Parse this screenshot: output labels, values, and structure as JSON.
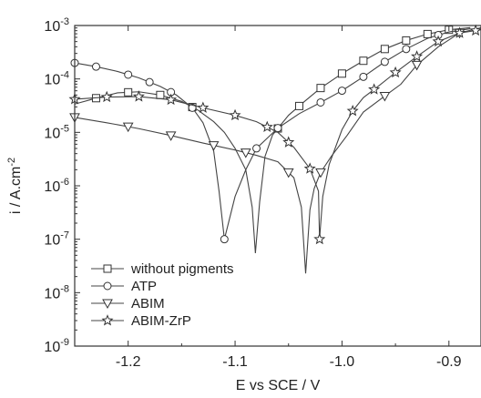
{
  "chart_data": {
    "type": "line",
    "xlabel": "E vs SCE / V",
    "ylabel_main": "i / A.cm",
    "ylabel_sup": "-2",
    "xlim": [
      -1.25,
      -0.87
    ],
    "ylim_log10": [
      -9,
      -3
    ],
    "y_scale": "log",
    "x_ticks": [
      -1.2,
      -1.1,
      -1.0,
      -0.9
    ],
    "x_tick_labels": [
      "-1.2",
      "-1.1",
      "-1.0",
      "-0.9"
    ],
    "y_ticks": [
      {
        "base": "10",
        "exp": "-9",
        "value": -9
      },
      {
        "base": "10",
        "exp": "-8",
        "value": -8
      },
      {
        "base": "10",
        "exp": "-7",
        "value": -7
      },
      {
        "base": "10",
        "exp": "-6",
        "value": -6
      },
      {
        "base": "10",
        "exp": "-5",
        "value": -5
      },
      {
        "base": "10",
        "exp": "-4",
        "value": -4
      },
      {
        "base": "10",
        "exp": "-3",
        "value": -3
      }
    ],
    "legend_position": "bottom-left",
    "series": [
      {
        "name": "without pigments",
        "marker": "square",
        "points": [
          [
            -1.25,
            -4.47
          ],
          [
            -1.23,
            -4.36
          ],
          [
            -1.21,
            -4.26
          ],
          [
            -1.19,
            -4.24
          ],
          [
            -1.17,
            -4.3
          ],
          [
            -1.15,
            -4.42
          ],
          [
            -1.135,
            -4.58
          ],
          [
            -1.12,
            -4.8
          ],
          [
            -1.11,
            -5.0
          ],
          [
            -1.1,
            -5.3
          ],
          [
            -1.09,
            -5.7
          ],
          [
            -1.084,
            -6.4
          ],
          [
            -1.081,
            -7.26
          ],
          [
            -1.077,
            -6.3
          ],
          [
            -1.072,
            -5.45
          ],
          [
            -1.065,
            -5.05
          ],
          [
            -1.05,
            -4.68
          ],
          [
            -1.035,
            -4.42
          ],
          [
            -1.02,
            -4.17
          ],
          [
            -1.0,
            -3.9
          ],
          [
            -0.98,
            -3.66
          ],
          [
            -0.96,
            -3.44
          ],
          [
            -0.94,
            -3.28
          ],
          [
            -0.92,
            -3.16
          ],
          [
            -0.9,
            -3.08
          ],
          [
            -0.88,
            -3.04
          ]
        ],
        "marker_x": [
          -1.23,
          -1.2,
          -1.17,
          -1.14,
          -1.06,
          -1.04,
          -1.02,
          -1.0,
          -0.98,
          -0.96,
          -0.94,
          -0.92,
          -0.9
        ]
      },
      {
        "name": "ATP",
        "marker": "circle",
        "points": [
          [
            -1.25,
            -3.7
          ],
          [
            -1.23,
            -3.77
          ],
          [
            -1.21,
            -3.86
          ],
          [
            -1.19,
            -3.98
          ],
          [
            -1.17,
            -4.14
          ],
          [
            -1.155,
            -4.3
          ],
          [
            -1.14,
            -4.54
          ],
          [
            -1.13,
            -4.82
          ],
          [
            -1.12,
            -5.35
          ],
          [
            -1.115,
            -6.1
          ],
          [
            -1.11,
            -7.0
          ],
          [
            -1.1,
            -6.2
          ],
          [
            -1.09,
            -5.7
          ],
          [
            -1.08,
            -5.3
          ],
          [
            -1.06,
            -4.92
          ],
          [
            -1.04,
            -4.65
          ],
          [
            -1.02,
            -4.44
          ],
          [
            -1.0,
            -4.22
          ],
          [
            -0.98,
            -3.96
          ],
          [
            -0.96,
            -3.68
          ],
          [
            -0.94,
            -3.44
          ],
          [
            -0.92,
            -3.24
          ],
          [
            -0.9,
            -3.12
          ],
          [
            -0.88,
            -3.06
          ]
        ],
        "marker_x": [
          -1.25,
          -1.23,
          -1.2,
          -1.18,
          -1.16,
          -1.14,
          -1.11,
          -1.08,
          -1.06,
          -1.02,
          -1.0,
          -0.98,
          -0.96,
          -0.94,
          -0.91
        ]
      },
      {
        "name": "ABIM",
        "marker": "triangle-down",
        "points": [
          [
            -1.25,
            -4.72
          ],
          [
            -1.22,
            -4.82
          ],
          [
            -1.19,
            -4.93
          ],
          [
            -1.16,
            -5.06
          ],
          [
            -1.13,
            -5.2
          ],
          [
            -1.1,
            -5.33
          ],
          [
            -1.08,
            -5.43
          ],
          [
            -1.06,
            -5.55
          ],
          [
            -1.045,
            -5.85
          ],
          [
            -1.038,
            -6.4
          ],
          [
            -1.034,
            -7.64
          ],
          [
            -1.03,
            -6.45
          ],
          [
            -1.026,
            -6.05
          ],
          [
            -1.02,
            -5.75
          ],
          [
            -1.01,
            -5.45
          ],
          [
            -0.995,
            -5.05
          ],
          [
            -0.98,
            -4.62
          ],
          [
            -0.96,
            -4.32
          ],
          [
            -0.945,
            -4.1
          ],
          [
            -0.93,
            -3.74
          ],
          [
            -0.91,
            -3.4
          ],
          [
            -0.89,
            -3.14
          ],
          [
            -0.87,
            -3.04
          ]
        ],
        "marker_x": [
          -1.25,
          -1.2,
          -1.16,
          -1.12,
          -1.09,
          -1.05,
          -1.02,
          -0.96,
          -0.93,
          -0.89
        ]
      },
      {
        "name": "ABIM-ZrP",
        "marker": "star",
        "points": [
          [
            -1.25,
            -4.38
          ],
          [
            -1.22,
            -4.34
          ],
          [
            -1.19,
            -4.33
          ],
          [
            -1.16,
            -4.39
          ],
          [
            -1.13,
            -4.54
          ],
          [
            -1.1,
            -4.68
          ],
          [
            -1.08,
            -4.8
          ],
          [
            -1.06,
            -5.0
          ],
          [
            -1.045,
            -5.28
          ],
          [
            -1.03,
            -5.68
          ],
          [
            -1.022,
            -6.1
          ],
          [
            -1.021,
            -7.0
          ],
          [
            -1.018,
            -6.2
          ],
          [
            -1.012,
            -5.6
          ],
          [
            -1.0,
            -4.95
          ],
          [
            -0.99,
            -4.6
          ],
          [
            -0.98,
            -4.35
          ],
          [
            -0.965,
            -4.12
          ],
          [
            -0.95,
            -3.88
          ],
          [
            -0.93,
            -3.58
          ],
          [
            -0.91,
            -3.3
          ],
          [
            -0.89,
            -3.14
          ],
          [
            -0.87,
            -3.08
          ]
        ],
        "marker_x": [
          -1.25,
          -1.22,
          -1.19,
          -1.16,
          -1.13,
          -1.1,
          -1.07,
          -1.05,
          -1.03,
          -1.021,
          -0.99,
          -0.97,
          -0.95,
          -0.93,
          -0.91,
          -0.89,
          -0.875
        ]
      }
    ]
  }
}
